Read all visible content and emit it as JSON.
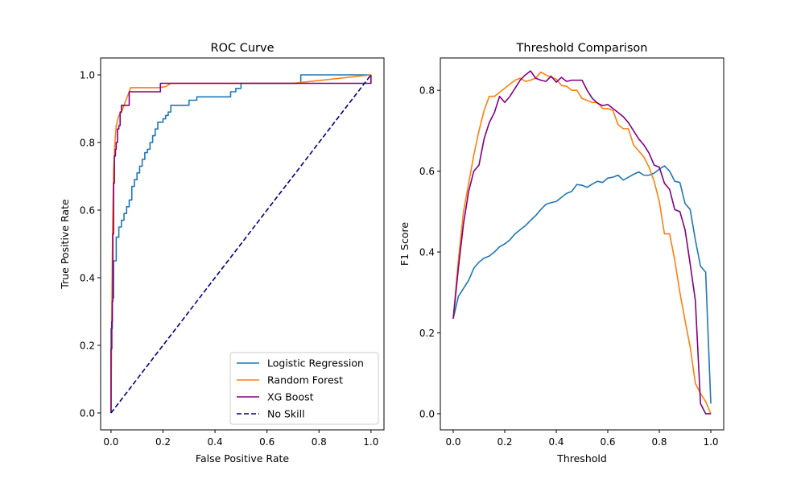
{
  "chart_data": [
    {
      "type": "line",
      "title": "ROC Curve",
      "xlabel": "False Positive Rate",
      "ylabel": "True Positive Rate",
      "xlim": [
        -0.04,
        1.05
      ],
      "ylim": [
        -0.05,
        1.05
      ],
      "xticks": [
        "0.0",
        "0.2",
        "0.4",
        "0.6",
        "0.8",
        "1.0"
      ],
      "yticks": [
        "0.0",
        "0.2",
        "0.4",
        "0.6",
        "0.8",
        "1.0"
      ],
      "grid": false,
      "legend_position": "lower-right",
      "series": [
        {
          "name": "Logistic Regression",
          "color": "#1f77b4",
          "style": "step",
          "points": [
            [
              0,
              0
            ],
            [
              0,
              0.25
            ],
            [
              0.005,
              0.25
            ],
            [
              0.005,
              0.34
            ],
            [
              0.01,
              0.34
            ],
            [
              0.01,
              0.45
            ],
            [
              0.02,
              0.45
            ],
            [
              0.02,
              0.52
            ],
            [
              0.03,
              0.52
            ],
            [
              0.03,
              0.55
            ],
            [
              0.04,
              0.55
            ],
            [
              0.04,
              0.57
            ],
            [
              0.05,
              0.57
            ],
            [
              0.05,
              0.59
            ],
            [
              0.06,
              0.59
            ],
            [
              0.06,
              0.61
            ],
            [
              0.07,
              0.61
            ],
            [
              0.07,
              0.63
            ],
            [
              0.08,
              0.63
            ],
            [
              0.08,
              0.67
            ],
            [
              0.09,
              0.67
            ],
            [
              0.09,
              0.69
            ],
            [
              0.1,
              0.69
            ],
            [
              0.1,
              0.71
            ],
            [
              0.11,
              0.71
            ],
            [
              0.11,
              0.73
            ],
            [
              0.12,
              0.73
            ],
            [
              0.12,
              0.75
            ],
            [
              0.13,
              0.75
            ],
            [
              0.13,
              0.77
            ],
            [
              0.14,
              0.77
            ],
            [
              0.14,
              0.78
            ],
            [
              0.15,
              0.78
            ],
            [
              0.15,
              0.8
            ],
            [
              0.16,
              0.8
            ],
            [
              0.16,
              0.82
            ],
            [
              0.17,
              0.82
            ],
            [
              0.17,
              0.84
            ],
            [
              0.18,
              0.84
            ],
            [
              0.18,
              0.86
            ],
            [
              0.2,
              0.86
            ],
            [
              0.2,
              0.87
            ],
            [
              0.21,
              0.87
            ],
            [
              0.21,
              0.88
            ],
            [
              0.22,
              0.88
            ],
            [
              0.22,
              0.89
            ],
            [
              0.23,
              0.89
            ],
            [
              0.23,
              0.91
            ],
            [
              0.3,
              0.91
            ],
            [
              0.3,
              0.925
            ],
            [
              0.33,
              0.925
            ],
            [
              0.33,
              0.935
            ],
            [
              0.46,
              0.935
            ],
            [
              0.46,
              0.95
            ],
            [
              0.48,
              0.95
            ],
            [
              0.48,
              0.96
            ],
            [
              0.5,
              0.96
            ],
            [
              0.5,
              0.975
            ],
            [
              0.73,
              0.975
            ],
            [
              0.73,
              1.0
            ],
            [
              1.0,
              1.0
            ]
          ]
        },
        {
          "name": "Random Forest",
          "color": "#ff7f0e",
          "style": "line",
          "points": [
            [
              0,
              0
            ],
            [
              0.003,
              0.3
            ],
            [
              0.006,
              0.55
            ],
            [
              0.01,
              0.72
            ],
            [
              0.015,
              0.8
            ],
            [
              0.02,
              0.85
            ],
            [
              0.03,
              0.88
            ],
            [
              0.04,
              0.89
            ],
            [
              0.05,
              0.91
            ],
            [
              0.06,
              0.93
            ],
            [
              0.07,
              0.95
            ],
            [
              0.075,
              0.962
            ],
            [
              0.18,
              0.962
            ],
            [
              0.21,
              0.965
            ],
            [
              0.23,
              0.975
            ],
            [
              0.7,
              0.975
            ],
            [
              1.0,
              1.0
            ]
          ]
        },
        {
          "name": "XG Boost",
          "color": "#800080",
          "style": "step",
          "points": [
            [
              0,
              0
            ],
            [
              0,
              0.19
            ],
            [
              0.003,
              0.19
            ],
            [
              0.003,
              0.27
            ],
            [
              0.005,
              0.27
            ],
            [
              0.005,
              0.33
            ],
            [
              0.007,
              0.33
            ],
            [
              0.007,
              0.53
            ],
            [
              0.01,
              0.53
            ],
            [
              0.01,
              0.68
            ],
            [
              0.013,
              0.68
            ],
            [
              0.013,
              0.76
            ],
            [
              0.017,
              0.76
            ],
            [
              0.017,
              0.78
            ],
            [
              0.02,
              0.78
            ],
            [
              0.02,
              0.8
            ],
            [
              0.025,
              0.8
            ],
            [
              0.025,
              0.84
            ],
            [
              0.03,
              0.84
            ],
            [
              0.03,
              0.85
            ],
            [
              0.035,
              0.85
            ],
            [
              0.035,
              0.89
            ],
            [
              0.04,
              0.89
            ],
            [
              0.04,
              0.91
            ],
            [
              0.07,
              0.91
            ],
            [
              0.07,
              0.95
            ],
            [
              0.19,
              0.95
            ],
            [
              0.19,
              0.975
            ],
            [
              1.0,
              0.975
            ],
            [
              1.0,
              1.0
            ]
          ]
        },
        {
          "name": "No Skill",
          "color": "#000080",
          "style": "dashed",
          "points": [
            [
              0,
              0
            ],
            [
              1,
              1
            ]
          ]
        }
      ]
    },
    {
      "type": "line",
      "title": "Threshold Comparison",
      "xlabel": "Threshold",
      "ylabel": "F1 Score",
      "xlim": [
        -0.05,
        1.05
      ],
      "ylim": [
        -0.04,
        0.88
      ],
      "xticks": [
        "0.0",
        "0.2",
        "0.4",
        "0.6",
        "0.8",
        "1.0"
      ],
      "yticks": [
        "0.0",
        "0.2",
        "0.4",
        "0.6",
        "0.8"
      ],
      "grid": false,
      "x": [
        0,
        0.02,
        0.04,
        0.06,
        0.08,
        0.1,
        0.12,
        0.14,
        0.16,
        0.18,
        0.2,
        0.22,
        0.24,
        0.26,
        0.28,
        0.3,
        0.32,
        0.34,
        0.36,
        0.38,
        0.4,
        0.42,
        0.44,
        0.46,
        0.48,
        0.5,
        0.52,
        0.54,
        0.56,
        0.58,
        0.6,
        0.62,
        0.64,
        0.66,
        0.68,
        0.7,
        0.72,
        0.74,
        0.76,
        0.78,
        0.8,
        0.82,
        0.84,
        0.86,
        0.88,
        0.9,
        0.92,
        0.94,
        0.96,
        0.98,
        1.0
      ],
      "series": [
        {
          "name": "Logistic Regression",
          "color": "#1f77b4",
          "values": [
            0.235,
            0.29,
            0.31,
            0.33,
            0.36,
            0.375,
            0.385,
            0.39,
            0.4,
            0.413,
            0.42,
            0.43,
            0.445,
            0.455,
            0.465,
            0.478,
            0.49,
            0.505,
            0.518,
            0.522,
            0.525,
            0.535,
            0.545,
            0.55,
            0.567,
            0.565,
            0.56,
            0.568,
            0.575,
            0.572,
            0.583,
            0.585,
            0.59,
            0.578,
            0.585,
            0.592,
            0.598,
            0.59,
            0.59,
            0.595,
            0.605,
            0.613,
            0.6,
            0.575,
            0.572,
            0.52,
            0.505,
            0.43,
            0.365,
            0.35,
            0.025
          ]
        },
        {
          "name": "Random Forest",
          "color": "#ff7f0e",
          "values": [
            0.235,
            0.38,
            0.5,
            0.57,
            0.64,
            0.7,
            0.75,
            0.785,
            0.785,
            0.795,
            0.805,
            0.815,
            0.825,
            0.83,
            0.822,
            0.825,
            0.83,
            0.845,
            0.838,
            0.832,
            0.828,
            0.812,
            0.81,
            0.8,
            0.8,
            0.78,
            0.775,
            0.77,
            0.77,
            0.755,
            0.755,
            0.75,
            0.715,
            0.705,
            0.705,
            0.665,
            0.65,
            0.635,
            0.61,
            0.575,
            0.525,
            0.445,
            0.445,
            0.38,
            0.3,
            0.23,
            0.165,
            0.075,
            0.05,
            0.03,
            0.0
          ]
        },
        {
          "name": "XG Boost",
          "color": "#800080",
          "values": [
            0.235,
            0.36,
            0.47,
            0.55,
            0.6,
            0.615,
            0.68,
            0.72,
            0.745,
            0.785,
            0.77,
            0.785,
            0.805,
            0.825,
            0.838,
            0.848,
            0.83,
            0.825,
            0.822,
            0.835,
            0.82,
            0.832,
            0.822,
            0.825,
            0.825,
            0.825,
            0.8,
            0.78,
            0.768,
            0.762,
            0.765,
            0.755,
            0.745,
            0.735,
            0.72,
            0.7,
            0.68,
            0.665,
            0.645,
            0.615,
            0.61,
            0.57,
            0.555,
            0.505,
            0.5,
            0.455,
            0.37,
            0.28,
            0.025,
            0.0,
            0.0
          ]
        }
      ]
    }
  ]
}
